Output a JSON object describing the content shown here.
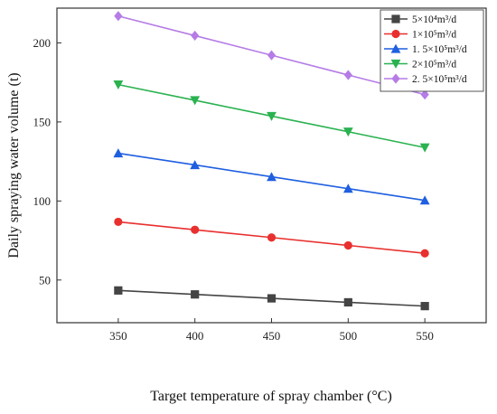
{
  "chart_data": {
    "type": "line",
    "title": "",
    "xlabel": "Target temperature of spray chamber (°C)",
    "ylabel": "Daily spraying water volume (t)",
    "x": [
      350,
      400,
      450,
      500,
      550
    ],
    "xlim": [
      310,
      590
    ],
    "ylim": [
      23,
      222
    ],
    "xticks": [
      350,
      400,
      450,
      500,
      550
    ],
    "yticks": [
      50,
      100,
      150,
      200
    ],
    "grid": false,
    "legend_position": "top-right",
    "series": [
      {
        "name": "5×10⁴m³/d",
        "color": "#444444",
        "marker": "square",
        "values": [
          43.4,
          40.9,
          38.4,
          35.9,
          33.5
        ]
      },
      {
        "name": "1×10⁵m³/d",
        "color": "#e8302e",
        "marker": "circle",
        "values": [
          86.8,
          81.8,
          76.9,
          71.9,
          66.9
        ]
      },
      {
        "name": "1. 5×10⁵m³/d",
        "color": "#1f5fe0",
        "marker": "triangle-up",
        "values": [
          130.2,
          122.8,
          115.3,
          107.8,
          100.4
        ]
      },
      {
        "name": "2×10⁵m³/d",
        "color": "#2ab250",
        "marker": "triangle-down",
        "values": [
          173.6,
          163.7,
          153.7,
          143.8,
          133.8
        ]
      },
      {
        "name": "2. 5×10⁵m³/d",
        "color": "#b57ce6",
        "marker": "diamond",
        "values": [
          217.0,
          204.6,
          192.2,
          179.7,
          167.3
        ]
      }
    ]
  }
}
